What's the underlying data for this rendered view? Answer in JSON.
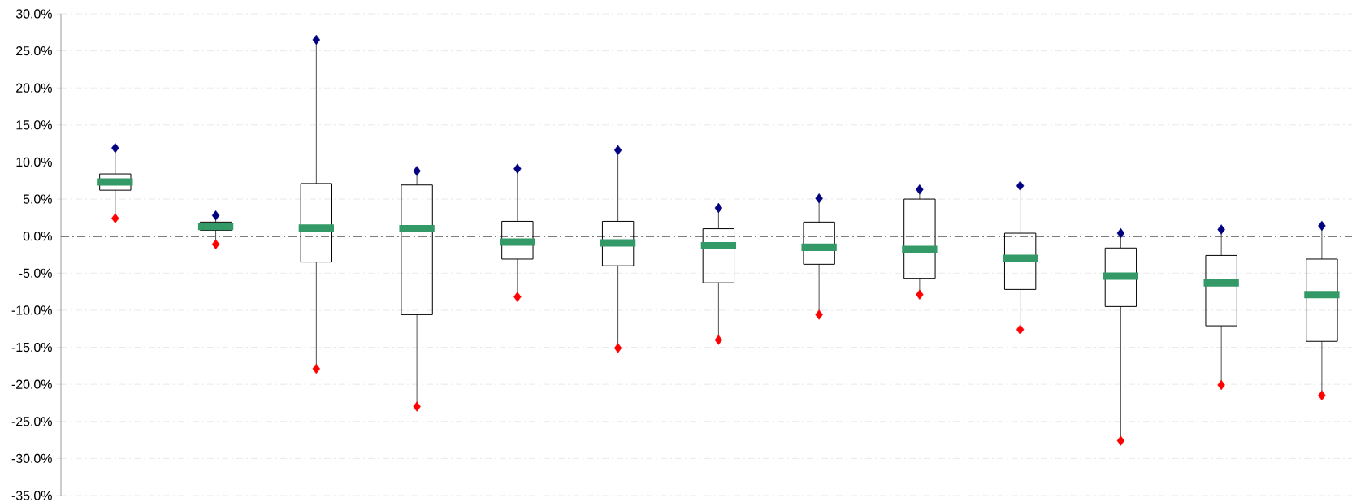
{
  "chart_data": {
    "type": "box",
    "categories": [
      null,
      null,
      null,
      null,
      null,
      null,
      null,
      null,
      null,
      null,
      null,
      null,
      null
    ],
    "series": [
      {
        "color": "#000000",
        "boxes": [
          {
            "low": 2.4,
            "q1": 6.2,
            "median": 7.3,
            "q3": 8.4,
            "high": 11.9
          },
          {
            "low": -1.1,
            "q1": 0.8,
            "median": 1.3,
            "q3": 1.9,
            "high": 2.8
          },
          {
            "low": -17.9,
            "q1": -3.5,
            "median": 1.1,
            "q3": 7.1,
            "high": 26.5
          },
          {
            "low": -23.0,
            "q1": -10.6,
            "median": 1.0,
            "q3": 6.9,
            "high": 8.8
          },
          {
            "low": -8.2,
            "q1": -3.1,
            "median": -0.8,
            "q3": 2.0,
            "high": 9.1
          },
          {
            "low": -15.1,
            "q1": -4.0,
            "median": -0.9,
            "q3": 2.0,
            "high": 11.6
          },
          {
            "low": -14.0,
            "q1": -6.3,
            "median": -1.3,
            "q3": 1.0,
            "high": 3.8
          },
          {
            "low": -10.6,
            "q1": -3.8,
            "median": -1.5,
            "q3": 1.9,
            "high": 5.1
          },
          {
            "low": -7.9,
            "q1": -5.7,
            "median": -1.8,
            "q3": 5.0,
            "high": 6.3
          },
          {
            "low": -12.6,
            "q1": -7.2,
            "median": -3.0,
            "q3": 0.4,
            "high": 6.8
          },
          {
            "low": -27.6,
            "q1": -9.5,
            "median": -5.4,
            "q3": -1.6,
            "high": 0.4
          },
          {
            "low": -20.1,
            "q1": -12.1,
            "median": -6.3,
            "q3": -2.6,
            "high": 0.9
          },
          {
            "low": -21.5,
            "q1": -14.2,
            "median": -7.9,
            "q3": -3.1,
            "high": 1.4
          }
        ]
      },
      {
        "type": "scatter",
        "color": "#000080",
        "marker": "diamond",
        "values": [
          11.9,
          2.8,
          26.5,
          8.8,
          9.1,
          11.6,
          3.8,
          5.1,
          6.3,
          6.8,
          0.4,
          0.9,
          1.4
        ]
      },
      {
        "type": "scatter",
        "color": "#ff0000",
        "marker": "diamond",
        "values": [
          2.4,
          -1.1,
          -17.9,
          -23.0,
          -8.2,
          -15.1,
          -14.0,
          -10.6,
          -7.9,
          -12.6,
          -27.6,
          -20.1,
          -21.5
        ]
      }
    ],
    "ylim": [
      -35,
      30
    ],
    "yticks": [
      {
        "value": -35,
        "label": "-35.0%"
      },
      {
        "value": -30,
        "label": "-30.0%"
      },
      {
        "value": -25,
        "label": "-25.0%"
      },
      {
        "value": -20,
        "label": "-20.0%"
      },
      {
        "value": -15,
        "label": "-15.0%"
      },
      {
        "value": -10,
        "label": "-10.0%"
      },
      {
        "value": -5,
        "label": "-5.0%"
      },
      {
        "value": 0,
        "label": "0.0%"
      },
      {
        "value": 5,
        "label": "5.0%"
      },
      {
        "value": 10,
        "label": "10.0%"
      },
      {
        "value": 15,
        "label": "15.0%"
      },
      {
        "value": 20,
        "label": "20.0%"
      },
      {
        "value": 25,
        "label": "25.0%"
      },
      {
        "value": 30,
        "label": "30.0%"
      }
    ],
    "grid": "y",
    "ref_lines": [
      {
        "axis": "y",
        "value": 0,
        "color": "#000000",
        "line_style": "dashdot"
      }
    ],
    "tick_labels": "y"
  }
}
